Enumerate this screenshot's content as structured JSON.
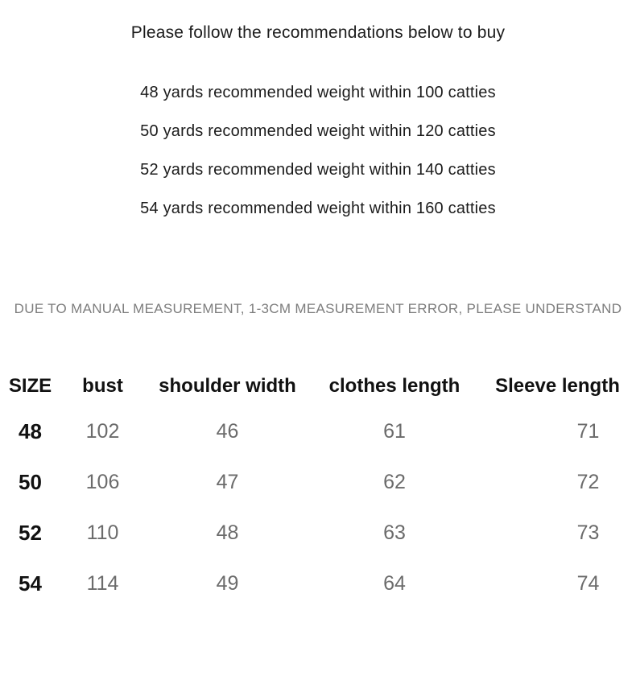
{
  "content": {
    "title": "Please follow the recommendations below to buy",
    "recommendations": [
      "48 yards recommended weight within 100 catties",
      "50 yards recommended weight within 120 catties",
      "52 yards recommended weight within 140 catties",
      "54 yards recommended weight within 160 catties"
    ],
    "disclaimer": "DUE TO MANUAL MEASUREMENT, 1-3CM MEASUREMENT ERROR, PLEASE UNDERSTAND"
  },
  "size_table": {
    "columns": [
      "SIZE",
      "bust",
      "shoulder width",
      "clothes length",
      "Sleeve length"
    ],
    "rows": [
      [
        "48",
        "102",
        "46",
        "61",
        "71"
      ],
      [
        "50",
        "106",
        "47",
        "62",
        "72"
      ],
      [
        "52",
        "110",
        "48",
        "63",
        "73"
      ],
      [
        "54",
        "114",
        "49",
        "64",
        "74"
      ]
    ]
  },
  "colors": {
    "background": "#ffffff",
    "text_primary": "#1c1c1c",
    "text_secondary": "#7d7d7d",
    "table_value_gray": "#6b6b6b"
  }
}
